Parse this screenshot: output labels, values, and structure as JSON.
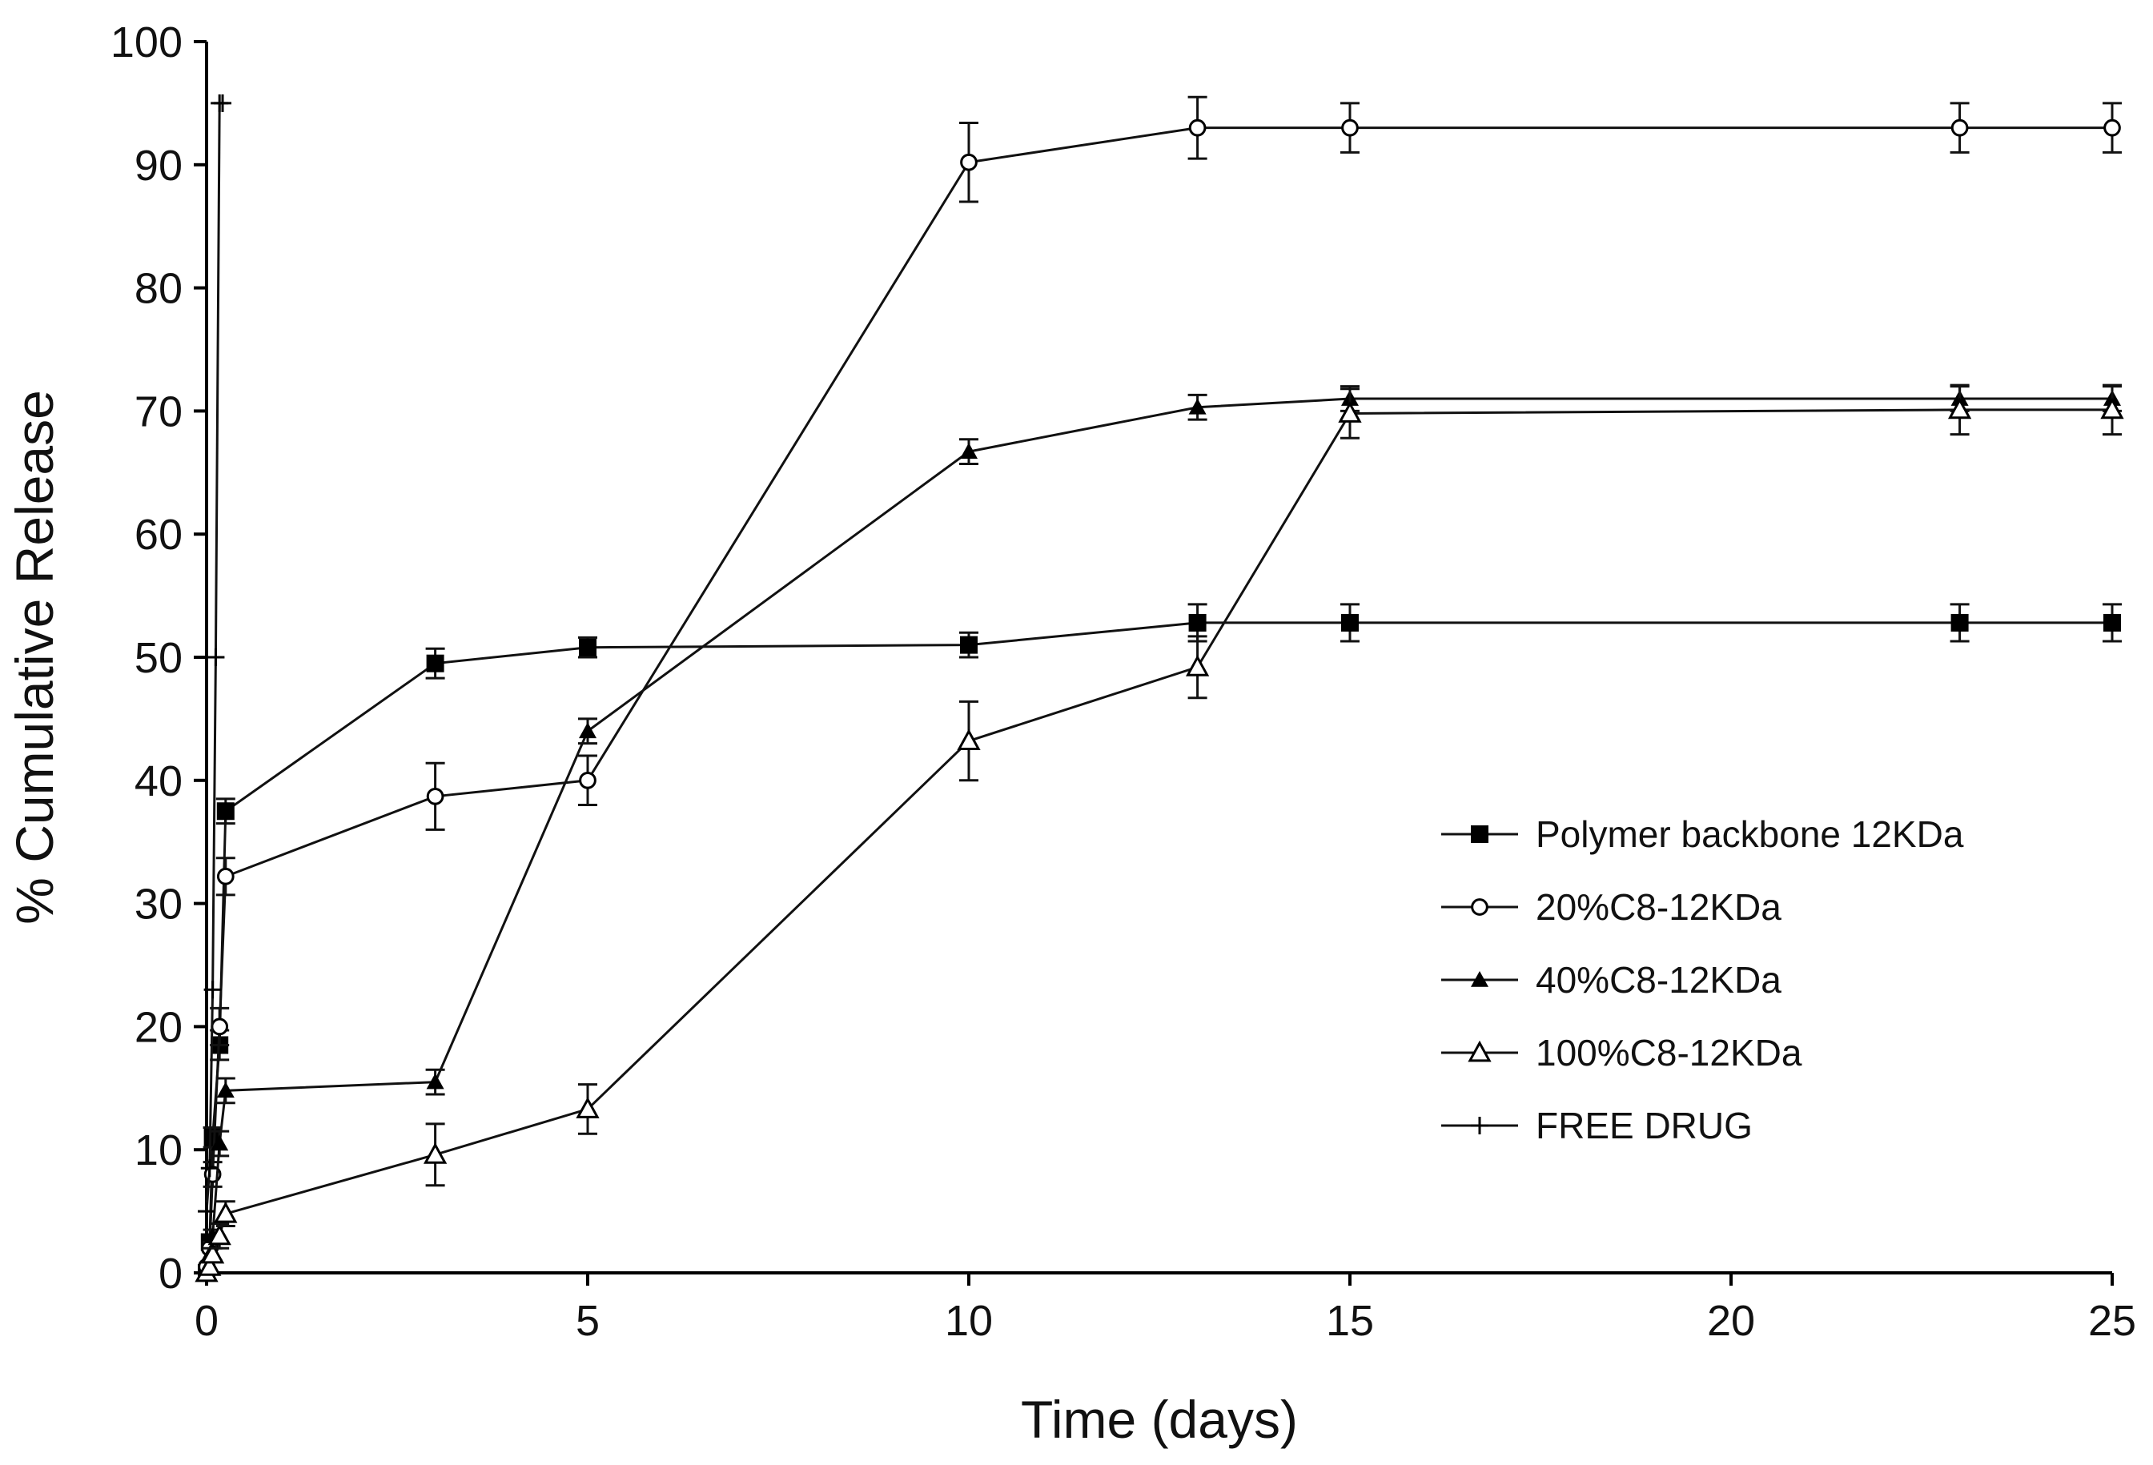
{
  "chart_data": {
    "type": "line",
    "xlabel": "Time (days)",
    "ylabel": "% Cumulative  Release",
    "xlim": [
      0,
      25
    ],
    "ylim": [
      0,
      100
    ],
    "xticks": [
      "0",
      "5",
      "10",
      "15",
      "20",
      "25"
    ],
    "yticks": [
      "0",
      "10",
      "20",
      "30",
      "40",
      "50",
      "60",
      "70",
      "80",
      "90",
      "100"
    ],
    "grid": false,
    "legend_position": "right",
    "series": [
      {
        "name": "Polymer backbone 12KDa",
        "marker": "filled-square",
        "x": [
          0,
          0.04,
          0.08,
          0.17,
          0.25,
          3,
          5,
          10,
          13,
          15,
          23,
          25
        ],
        "y": [
          0,
          2.5,
          11,
          18.5,
          37.5,
          49.5,
          50.8,
          51,
          52.8,
          52.8,
          52.8,
          52.8
        ],
        "err": [
          0,
          0,
          0.8,
          1.2,
          1.0,
          1.2,
          0.8,
          1.0,
          1.5,
          1.5,
          1.5,
          1.5
        ]
      },
      {
        "name": "20%C8-12KDa",
        "marker": "open-circle",
        "x": [
          0,
          0.04,
          0.08,
          0.17,
          0.25,
          3,
          5,
          10,
          13,
          15,
          23,
          25
        ],
        "y": [
          0.5,
          2,
          8,
          20,
          32.2,
          38.7,
          40,
          90.2,
          93,
          93,
          93,
          93
        ],
        "err": [
          0,
          0,
          1.0,
          1.5,
          1.5,
          2.7,
          2.0,
          3.2,
          2.5,
          2.0,
          2.0,
          2.0
        ]
      },
      {
        "name": "40%C8-12KDa",
        "marker": "filled-triangle",
        "x": [
          0,
          0.04,
          0.08,
          0.17,
          0.25,
          3,
          5,
          10,
          13,
          15,
          23,
          25
        ],
        "y": [
          0,
          1.5,
          3,
          10.5,
          14.8,
          15.5,
          44,
          66.7,
          70.3,
          71,
          71,
          71
        ],
        "err": [
          0,
          0,
          0.5,
          1.0,
          1.0,
          1.0,
          1.0,
          1.0,
          1.0,
          1.0,
          1.0,
          1.0
        ]
      },
      {
        "name": "100%C8-12KDa",
        "marker": "open-triangle",
        "x": [
          0,
          0.04,
          0.08,
          0.17,
          0.25,
          3,
          5,
          10,
          13,
          15,
          23,
          25
        ],
        "y": [
          0,
          0.5,
          1.5,
          3,
          4.8,
          9.6,
          13.3,
          43.2,
          49.2,
          69.8,
          70.1,
          70.1
        ],
        "err": [
          0,
          0,
          0.5,
          1.0,
          1.0,
          2.5,
          2.0,
          3.2,
          2.5,
          2.0,
          2.0,
          2.0
        ]
      },
      {
        "name": "FREE DRUG",
        "marker": "plus",
        "x": [
          0,
          0.04,
          0.08,
          0.12,
          0.17,
          0.21
        ],
        "y": [
          5,
          8.5,
          23,
          50,
          95,
          95
        ],
        "err": [
          0,
          0,
          0,
          0,
          0,
          0
        ]
      }
    ]
  }
}
